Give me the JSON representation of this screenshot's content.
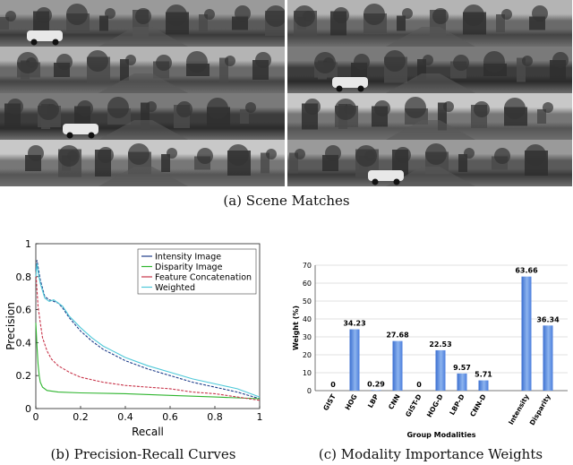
{
  "captions": {
    "a": "(a) Scene Matches",
    "b": "(b) Precision-Recall Curves",
    "c": "(c) Modality Importance Weights"
  },
  "scene_matches": {
    "rows": 4,
    "columns": 2,
    "description_tag": "grayscale-panoramic-street-photo"
  },
  "chart_data": [
    {
      "type": "line",
      "xlabel": "Recall",
      "ylabel": "Precision",
      "xlim": [
        0,
        1
      ],
      "ylim": [
        0,
        1
      ],
      "xticks": [
        "0",
        "0.2",
        "0.4",
        "0.6",
        "0.8",
        "1"
      ],
      "yticks": [
        "0",
        "0.2",
        "0.4",
        "0.6",
        "0.8",
        "1"
      ],
      "legend_position": "top-right",
      "series": [
        {
          "name": "Intensity Image",
          "color": "#1f3d8a",
          "x": [
            0,
            0.005,
            0.01,
            0.02,
            0.04,
            0.06,
            0.08,
            0.1,
            0.12,
            0.15,
            0.2,
            0.25,
            0.3,
            0.4,
            0.5,
            0.6,
            0.7,
            0.8,
            0.9,
            1.0
          ],
          "y": [
            0.84,
            0.9,
            0.86,
            0.78,
            0.68,
            0.66,
            0.65,
            0.64,
            0.61,
            0.55,
            0.47,
            0.41,
            0.36,
            0.29,
            0.24,
            0.2,
            0.16,
            0.13,
            0.1,
            0.06
          ]
        },
        {
          "name": "Disparity Image",
          "color": "#2fb52f",
          "x": [
            0,
            0.005,
            0.01,
            0.015,
            0.02,
            0.03,
            0.05,
            0.1,
            0.2,
            0.4,
            0.6,
            0.8,
            1.0
          ],
          "y": [
            0.52,
            0.38,
            0.27,
            0.2,
            0.16,
            0.13,
            0.11,
            0.1,
            0.095,
            0.09,
            0.08,
            0.07,
            0.06
          ]
        },
        {
          "name": "Feature Concatenation",
          "color": "#c8344a",
          "x": [
            0,
            0.005,
            0.01,
            0.02,
            0.03,
            0.05,
            0.07,
            0.1,
            0.15,
            0.2,
            0.3,
            0.4,
            0.5,
            0.6,
            0.7,
            0.8,
            0.9,
            1.0
          ],
          "y": [
            0.83,
            0.72,
            0.62,
            0.52,
            0.43,
            0.35,
            0.3,
            0.26,
            0.22,
            0.19,
            0.16,
            0.14,
            0.13,
            0.12,
            0.1,
            0.09,
            0.07,
            0.05
          ]
        },
        {
          "name": "Weighted",
          "color": "#4ec8d8",
          "x": [
            0,
            0.005,
            0.01,
            0.02,
            0.04,
            0.06,
            0.08,
            0.1,
            0.12,
            0.15,
            0.2,
            0.25,
            0.3,
            0.4,
            0.5,
            0.6,
            0.7,
            0.8,
            0.9,
            1.0
          ],
          "y": [
            0.8,
            0.88,
            0.83,
            0.76,
            0.67,
            0.65,
            0.66,
            0.64,
            0.62,
            0.56,
            0.49,
            0.43,
            0.38,
            0.31,
            0.26,
            0.22,
            0.18,
            0.15,
            0.12,
            0.07
          ]
        }
      ]
    },
    {
      "type": "bar",
      "xlabel": "Group Modalities",
      "ylabel": "Weight (%)",
      "ylim": [
        0,
        70
      ],
      "yticks": [
        "0",
        "10",
        "20",
        "30",
        "40",
        "50",
        "60",
        "70"
      ],
      "grid": true,
      "categories": [
        "GIST",
        "HOG",
        "LBP",
        "CNN",
        "GIST-D",
        "HOG-D",
        "LBP-D",
        "CNN-D",
        "Intensity",
        "Disparity"
      ],
      "values": [
        0,
        34.23,
        0.29,
        27.68,
        0,
        22.53,
        9.57,
        5.71,
        63.66,
        36.34
      ],
      "labels": [
        "0",
        "34.23",
        "0.29",
        "27.68",
        "0",
        "22.53",
        "9.57",
        "5.71",
        "63.66",
        "36.34"
      ],
      "gap_after_index": 7,
      "bar_color": "#5b8ddb"
    }
  ]
}
